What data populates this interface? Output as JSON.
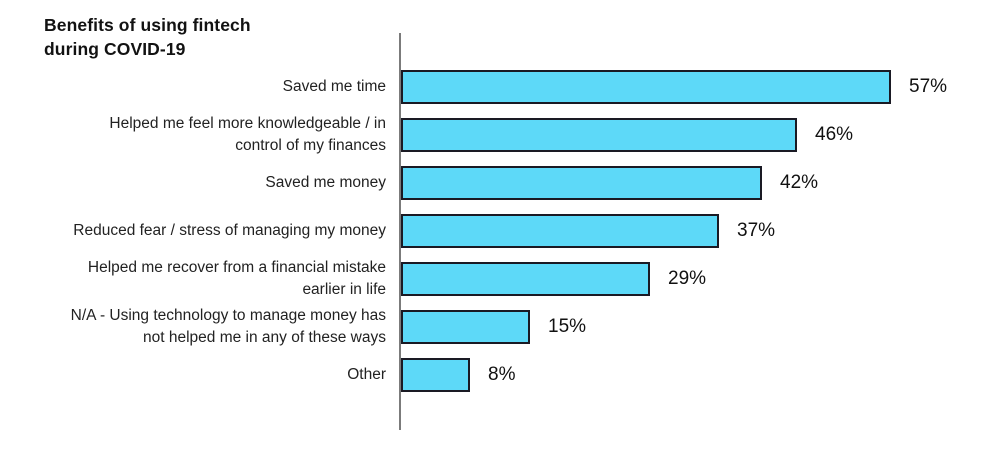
{
  "chart": {
    "title": "Benefits of using fintech\nduring COVID-19"
  },
  "chart_data": {
    "type": "bar",
    "orientation": "horizontal",
    "title": "Benefits of using fintech during COVID-19",
    "categories": [
      "Saved me time",
      "Helped me feel more knowledgeable / in\ncontrol of my finances",
      "Saved me money",
      "Reduced fear / stress of managing my money",
      "Helped me recover from a financial mistake\nearlier in life",
      "N/A - Using technology to manage money has\nnot helped me in any of these ways",
      "Other"
    ],
    "values": [
      57,
      46,
      42,
      37,
      29,
      15,
      8
    ],
    "value_labels": [
      "57%",
      "46%",
      "42%",
      "37%",
      "29%",
      "15%",
      "8%"
    ],
    "xlim": [
      0,
      60
    ],
    "grid": false,
    "legend": null,
    "colors": {
      "bar_fill": "#5DD9F8",
      "bar_border": "#1A1A24",
      "axis_line": "#7B7B7B",
      "text": "#111111"
    }
  }
}
